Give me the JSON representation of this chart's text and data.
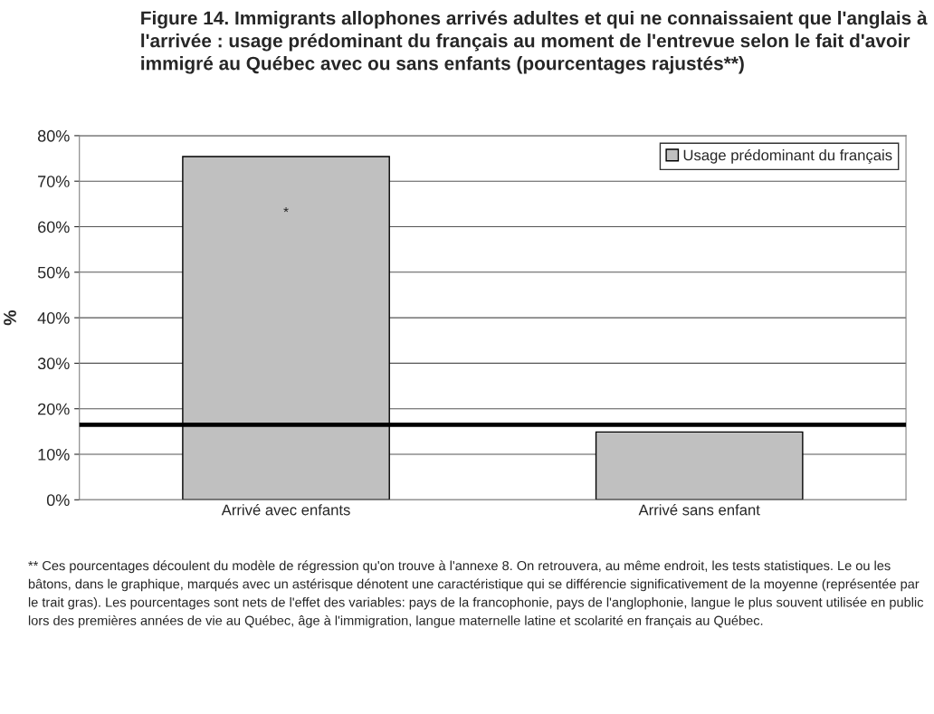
{
  "chart_data": {
    "type": "bar",
    "title": "Figure 14. Immigrants allophones arrivés adultes et qui ne connaissaient que l'anglais à l'arrivée : usage prédominant du français au moment de l'entrevue selon le fait d'avoir immigré au Québec avec ou sans enfants (pourcentages rajustés**)",
    "ylabel": "%",
    "categories": [
      "Arrivé avec enfants",
      "Arrivé sans enfant"
    ],
    "series": [
      {
        "name": "Usage prédominant du français",
        "color": "#c0c0c0",
        "values": [
          75.4,
          14.9
        ]
      }
    ],
    "ylim": [
      0,
      80
    ],
    "yticks": [
      {
        "value": 0,
        "label": "0%"
      },
      {
        "value": 10,
        "label": "10%"
      },
      {
        "value": 20,
        "label": "20%"
      },
      {
        "value": 30,
        "label": "30%"
      },
      {
        "value": 40,
        "label": "40%"
      },
      {
        "value": 50,
        "label": "50%"
      },
      {
        "value": 60,
        "label": "60%"
      },
      {
        "value": 70,
        "label": "70%"
      },
      {
        "value": 80,
        "label": "80%"
      }
    ],
    "ref_lines": [
      {
        "axis": "y",
        "value": 16.5,
        "color": "#000000"
      }
    ],
    "annotations": [
      "*",
      "** Ces pourcentages découlent du modèle de régression qu'on trouve à l'annexe 8. On retrouvera, au même endroit, les tests statistiques. Le ou les bâtons, dans le graphique, marqués avec un astérisque dénotent une caractéristique qui se différencie significativement de la moyenne (représentée par le trait gras). Les pourcentages sont nets de l'effet des variables: pays de la francophonie, pays de l'anglophonie, langue le plus souvent utilisée en public lors des premières années de vie au Québec, âge à l'immigration, langue maternelle latine et scolarité en français au Québec."
    ],
    "grid": "y",
    "legend": "top right"
  }
}
